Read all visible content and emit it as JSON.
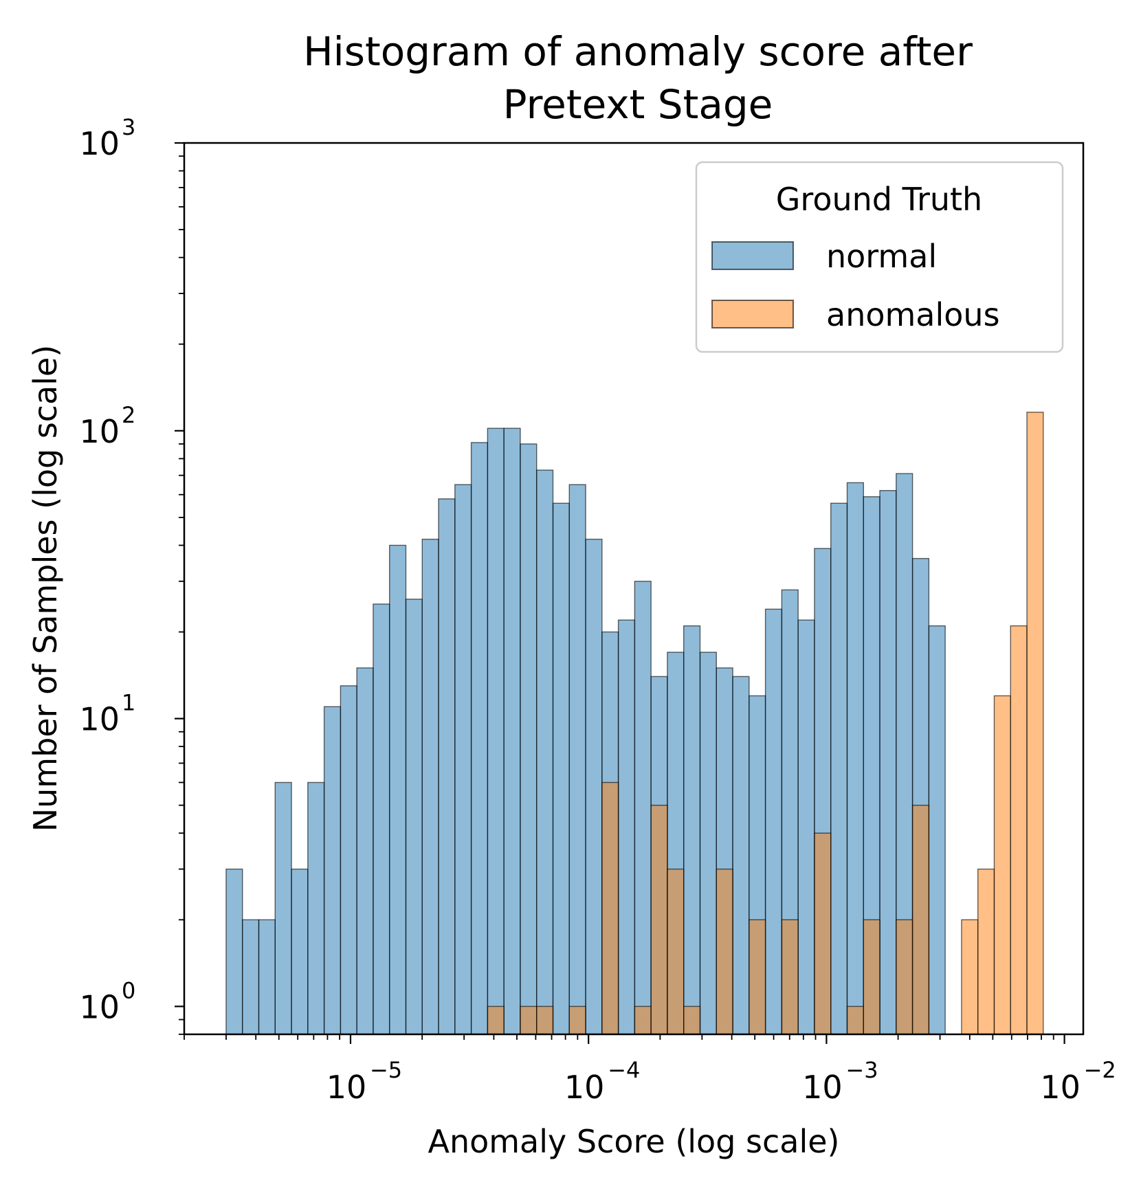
{
  "chart_data": {
    "type": "bar",
    "title_lines": [
      "Histogram of anomaly score after",
      "Pretext Stage"
    ],
    "xlabel": "Anomaly Score (log scale)",
    "ylabel": "Number of Samples (log scale)",
    "x_scale": "log",
    "y_scale": "log",
    "xlim": [
      2e-06,
      0.012
    ],
    "ylim": [
      0.8,
      1000
    ],
    "x_ticks": [
      {
        "base": "10",
        "exp": "−5",
        "value": 1e-05
      },
      {
        "base": "10",
        "exp": "−4",
        "value": 0.0001
      },
      {
        "base": "10",
        "exp": "−3",
        "value": 0.001
      },
      {
        "base": "10",
        "exp": "−2",
        "value": 0.01
      }
    ],
    "y_ticks": [
      {
        "base": "10",
        "exp": "0",
        "value": 1
      },
      {
        "base": "10",
        "exp": "1",
        "value": 10
      },
      {
        "base": "10",
        "exp": "2",
        "value": 100
      },
      {
        "base": "10",
        "exp": "3",
        "value": 1000
      }
    ],
    "bins": {
      "log10_start": -5.5229,
      "log10_width": 0.06868,
      "count": 52
    },
    "legend": {
      "title": "Ground Truth",
      "position": "top-right"
    },
    "series": [
      {
        "name": "normal",
        "color": "#1f77b4",
        "counts": [
          3,
          2,
          2,
          6,
          3,
          6,
          11,
          13,
          15,
          25,
          40,
          26,
          42,
          58,
          65,
          91,
          102,
          102,
          90,
          73,
          56,
          65,
          42,
          20,
          22,
          30,
          14,
          17,
          21,
          17,
          15,
          14,
          12,
          24,
          28,
          22,
          39,
          56,
          66,
          59,
          62,
          71,
          36,
          21,
          0,
          0,
          0,
          0,
          0,
          0,
          0,
          0
        ]
      },
      {
        "name": "anomalous",
        "color": "#ff7f0e",
        "counts": [
          0,
          0,
          0,
          0,
          0,
          0,
          0,
          0,
          0,
          0,
          0,
          0,
          0,
          0,
          0,
          0,
          1,
          0,
          1,
          1,
          0,
          1,
          0,
          6,
          0,
          1,
          5,
          3,
          1,
          0,
          3,
          0,
          2,
          0,
          2,
          0,
          4,
          0,
          1,
          2,
          0,
          2,
          5,
          0,
          0,
          2,
          3,
          12,
          21,
          116,
          0,
          0
        ]
      }
    ]
  }
}
